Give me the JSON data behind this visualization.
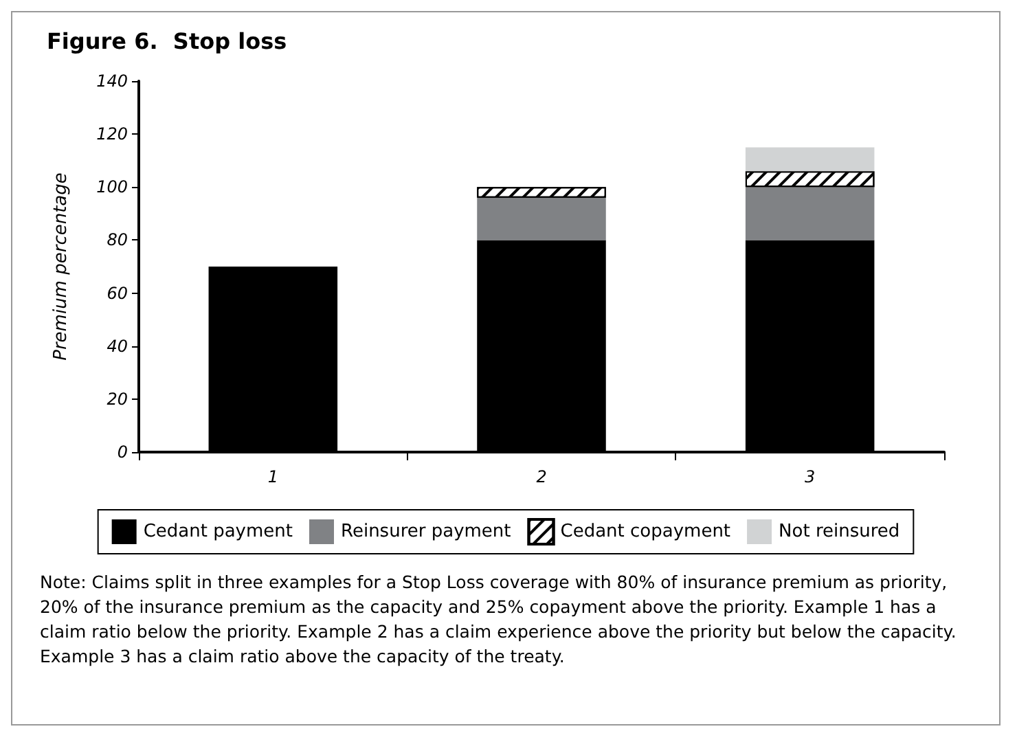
{
  "chart_data": {
    "type": "bar",
    "title": "Figure 6.  Stop loss",
    "ylabel": "Premium percentage",
    "categories": [
      "1",
      "2",
      "3"
    ],
    "stacked": true,
    "series": [
      {
        "name": "Cedant payment",
        "color": "#000000",
        "values": [
          70,
          80,
          80
        ]
      },
      {
        "name": "Reinsurer payment",
        "color": "#808285",
        "values": [
          null,
          16,
          20
        ]
      },
      {
        "name": "Cedant copayment",
        "color": "#ffffff",
        "values": [
          null,
          4,
          6
        ]
      },
      {
        "name": "Not reinsured",
        "color": "#d1d3d4",
        "values": [
          null,
          null,
          9
        ]
      }
    ],
    "ylim": [
      0,
      140
    ],
    "yticks": [
      0,
      20,
      40,
      60,
      80,
      100,
      120,
      140
    ],
    "grid": false,
    "legend": "bottom",
    "annotations": [
      "Note: Claims split in three examples for a Stop Loss coverage with 80% of insurance premium as priority, 20% of the insurance premium as the capacity and 25% copayment above the priority. Example 1 has a claim ratio below the priority. Example 2 has a claim experience above the priority but below the capacity. Example 3 has a claim ratio above the capacity of the treaty."
    ]
  }
}
